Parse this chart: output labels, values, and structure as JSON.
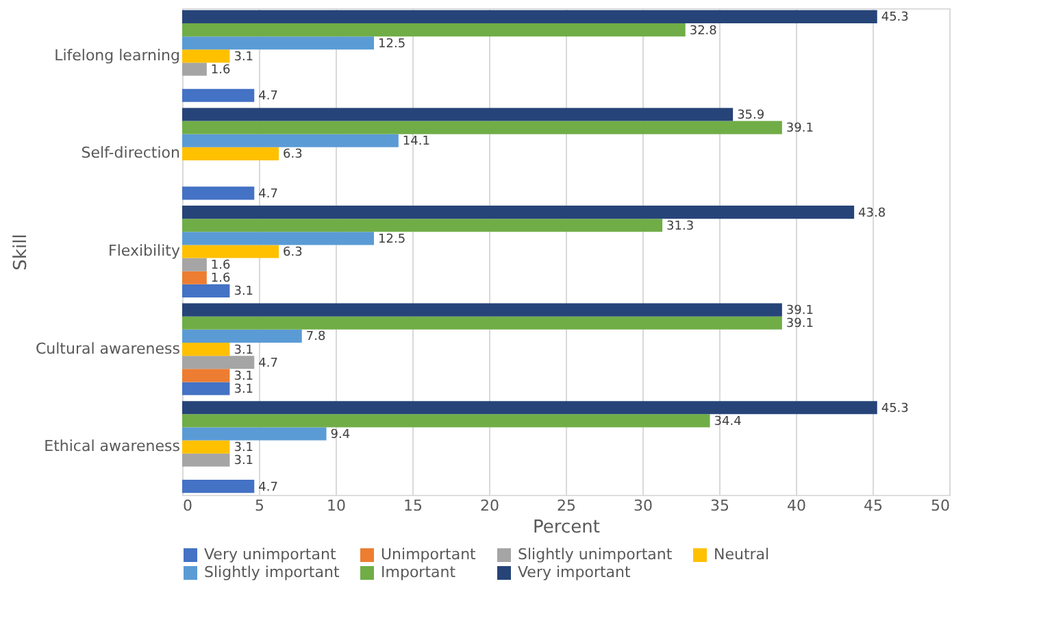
{
  "chart_data": {
    "type": "bar",
    "orientation": "horizontal",
    "xlabel": "Percent",
    "ylabel": "Skill",
    "categories": [
      "Lifelong learning",
      "Self-direction",
      "Flexibility",
      "Cultural awareness",
      "Ethical awareness"
    ],
    "series": [
      {
        "name": "Very unimportant",
        "color": "#4472c4",
        "values": [
          4.7,
          4.7,
          3.1,
          3.1,
          4.7
        ]
      },
      {
        "name": "Unimportant",
        "color": "#ed7d31",
        "values": [
          null,
          null,
          1.6,
          3.1,
          null
        ]
      },
      {
        "name": "Slightly unimportant",
        "color": "#a5a5a5",
        "values": [
          1.6,
          null,
          1.6,
          4.7,
          3.1
        ]
      },
      {
        "name": "Neutral",
        "color": "#ffc000",
        "values": [
          3.1,
          6.3,
          6.3,
          3.1,
          3.1
        ]
      },
      {
        "name": "Slightly important",
        "color": "#5b9bd5",
        "values": [
          12.5,
          14.1,
          12.5,
          7.8,
          9.4
        ]
      },
      {
        "name": "Important",
        "color": "#70ad47",
        "values": [
          32.8,
          39.1,
          31.3,
          39.1,
          34.4
        ]
      },
      {
        "name": "Very important",
        "color": "#264478",
        "values": [
          45.3,
          35.9,
          43.8,
          39.1,
          45.3
        ]
      }
    ],
    "xlim": [
      0,
      50
    ],
    "xticks": [
      0,
      5,
      10,
      15,
      20,
      25,
      30,
      35,
      40,
      45,
      50
    ],
    "grid": "x",
    "legend": "bottom",
    "data_labels": true
  }
}
